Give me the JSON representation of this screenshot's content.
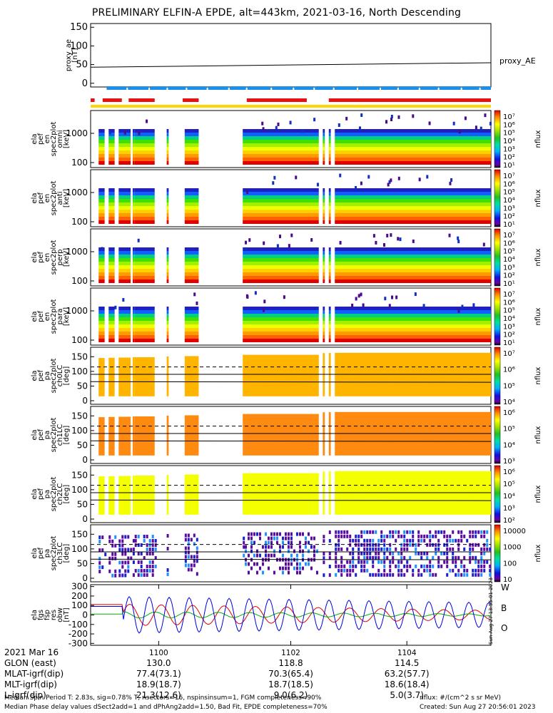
{
  "title": "PRELIMINARY ELFIN-A EPDE, alt=443km, 2021-03-16, North Descending",
  "chart_data": [
    {
      "type": "line",
      "ylabel": [
        "proxy_ae",
        "[nT]"
      ],
      "yticks": [
        "150",
        "100",
        "50",
        "0"
      ],
      "ylim": [
        -10,
        160
      ],
      "series": [
        {
          "name": "proxy_AE",
          "x": [
            0,
            1
          ],
          "values": [
            43,
            55
          ]
        }
      ]
    },
    {
      "type": "heatmap",
      "ylabel": [
        "ela",
        "pef",
        "en",
        "spec2plot",
        "omni",
        "[keV]"
      ],
      "yticks": [
        "1000",
        "100"
      ],
      "zlabel": "nflux",
      "zticks": [
        "10⁷",
        "10⁶",
        "10⁵",
        "10⁴",
        "10³",
        "10²",
        "10¹"
      ]
    },
    {
      "type": "heatmap",
      "ylabel": [
        "ela",
        "pef",
        "en",
        "spec2plot",
        "anti",
        "[keV]"
      ],
      "yticks": [
        "1000",
        "100"
      ],
      "zlabel": "nflux",
      "zticks": [
        "10⁷",
        "10⁶",
        "10⁵",
        "10⁴",
        "10³",
        "10²",
        "10¹"
      ]
    },
    {
      "type": "heatmap",
      "ylabel": [
        "ela",
        "pef",
        "en",
        "spec2plot",
        "perp",
        "[keV]"
      ],
      "yticks": [
        "1000",
        "100"
      ],
      "zlabel": "nflux",
      "zticks": [
        "10⁷",
        "10⁶",
        "10⁵",
        "10⁴",
        "10³",
        "10²",
        "10¹"
      ]
    },
    {
      "type": "heatmap",
      "ylabel": [
        "ela",
        "pef",
        "en",
        "spec2plot",
        "para",
        "[keV]"
      ],
      "yticks": [
        "1000",
        "100"
      ],
      "zlabel": "nflux",
      "zticks": [
        "10⁷",
        "10⁶",
        "10⁵",
        "10⁴",
        "10³",
        "10²",
        "10¹"
      ]
    },
    {
      "type": "heatmap",
      "ylabel": [
        "ela",
        "pef",
        "pa",
        "spec2plot",
        "ch0LC",
        "[deg]"
      ],
      "yticks": [
        "150",
        "100",
        "50",
        "0"
      ],
      "zlabel": "nflux",
      "zticks": [
        "10⁷",
        "10⁶",
        "10⁵",
        "10⁴"
      ]
    },
    {
      "type": "heatmap",
      "ylabel": [
        "ela",
        "pef",
        "pa",
        "spec2plot",
        "ch1LC",
        "[deg]"
      ],
      "yticks": [
        "150",
        "100",
        "50",
        "0"
      ],
      "zlabel": "nflux",
      "zticks": [
        "10⁶",
        "10⁵",
        "10⁴",
        "10³"
      ]
    },
    {
      "type": "heatmap",
      "ylabel": [
        "ela",
        "pef",
        "pa",
        "spec2plot",
        "ch2LC",
        "[deg]"
      ],
      "yticks": [
        "150",
        "100",
        "50",
        "0"
      ],
      "zlabel": "nflux",
      "zticks": [
        "10⁶",
        "10⁵",
        "10⁴",
        "10³",
        "10²"
      ]
    },
    {
      "type": "heatmap",
      "ylabel": [
        "ela",
        "pef",
        "pa",
        "spec2plot",
        "ch3LC",
        "[deg]"
      ],
      "yticks": [
        "150",
        "100",
        "50",
        "0"
      ],
      "zlabel": "nflux",
      "zticks": [
        "10000",
        "1000",
        "100",
        "10"
      ]
    },
    {
      "type": "line",
      "ylabel": [
        "ela",
        "fgs",
        "fsp",
        "res",
        "obw",
        "[nT]"
      ],
      "yticks": [
        "300",
        "200",
        "100",
        "0",
        "-100",
        "-200",
        "-300"
      ],
      "ylim": [
        -320,
        320
      ],
      "series": [
        {
          "name": "W",
          "color": "#e00000"
        },
        {
          "name": "B",
          "color": "#00b000"
        },
        {
          "name": "O",
          "color": "#0000e0"
        }
      ]
    }
  ],
  "side_label": "proxy_AE",
  "stamp": "Sun Aug 27 13:55:01 2023",
  "xaxis": {
    "ticks": [
      "1100",
      "1102",
      "1104"
    ],
    "rows": [
      {
        "label": "2021 Mar 16",
        "values": [
          "",
          "",
          ""
        ]
      },
      {
        "label": "GLON (east)",
        "values": [
          "130.0",
          "118.8",
          "114.5"
        ]
      },
      {
        "label": "MLAT-igrf(dip)",
        "values": [
          "77.4(73.1)",
          "70.3(65.4)",
          "63.2(57.7)"
        ]
      },
      {
        "label": "MLT-igrf(dip)",
        "values": [
          "18.9(18.7)",
          "18.7(18.5)",
          "18.6(18.4)"
        ]
      },
      {
        "label": "L-igrf(dip)",
        "values": [
          "21.3(12.6)",
          "9.0(6.2)",
          "5.0(3.7)"
        ]
      }
    ]
  },
  "footer": {
    "line1_left": "Median Spin Period T: 2.83s, sig=0.78% T, nsectors=16, nspinsinsum=1, FGM completeness=90%",
    "line2_left": "Median Phase delay values dSect2add=1 and dPhAng2add=1.50, Bad Fit, EPDE completeness=70%",
    "line1_right": "nflux: #/(cm^2 s sr MeV)",
    "line2_right": "Created: Sun Aug 27 20:56:01 2023"
  },
  "colors": {
    "orbit_blue": "#1e8fe6",
    "orbit_red": "#e81010",
    "fill_yellow": "#ffd700"
  }
}
